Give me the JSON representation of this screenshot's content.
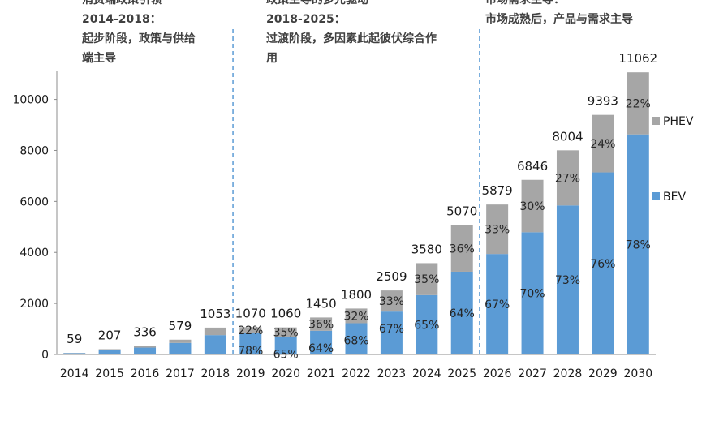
{
  "chart_data": {
    "type": "bar",
    "stacked": true,
    "categories": [
      "2014",
      "2015",
      "2016",
      "2017",
      "2018",
      "2019",
      "2020",
      "2021",
      "2022",
      "2023",
      "2024",
      "2025",
      "2026",
      "2027",
      "2028",
      "2029",
      "2030"
    ],
    "totals": [
      59,
      207,
      336,
      579,
      1053,
      1070,
      1060,
      1450,
      1800,
      2509,
      3580,
      5070,
      5879,
      6846,
      8004,
      9393,
      11062
    ],
    "total_labels": [
      "59",
      "207",
      "336",
      "579",
      "1053",
      "1070",
      "1060",
      "1450",
      "1800",
      "2509",
      "3580",
      "5070",
      "5879",
      "6846",
      "8004",
      "9393",
      "11062"
    ],
    "bev_share": [
      0.87,
      0.88,
      0.8,
      0.78,
      0.72,
      0.78,
      0.65,
      0.64,
      0.68,
      0.67,
      0.65,
      0.64,
      0.67,
      0.7,
      0.73,
      0.76,
      0.78
    ],
    "series": [
      {
        "name": "BEV",
        "color": "#5b9bd5",
        "labels": [
          "",
          "",
          "",
          "",
          "",
          "78%",
          "65%",
          "64%",
          "68%",
          "67%",
          "65%",
          "64%",
          "67%",
          "70%",
          "73%",
          "76%",
          "78%"
        ]
      },
      {
        "name": "PHEV",
        "color": "#a6a6a6",
        "labels": [
          "",
          "",
          "",
          "",
          "",
          "22%",
          "35%",
          "36%",
          "32%",
          "33%",
          "35%",
          "36%",
          "33%",
          "30%",
          "27%",
          "24%",
          "22%"
        ]
      }
    ],
    "y_ticks": [
      "0",
      "2000",
      "4000",
      "6000",
      "8000",
      "10000"
    ],
    "ylim": [
      0,
      11100
    ],
    "grid": false,
    "legend": "right",
    "phase_dividers_after": [
      "2018",
      "2025"
    ],
    "divider_color": "#5b9bd5"
  },
  "annotations": [
    [
      "消费端政策引领",
      "2014-2018：",
      "起步阶段，政策与供给",
      "端主导"
    ],
    [
      "政策主导的多元驱动",
      "2018-2025：",
      "过渡阶段，多因素此起彼伏综合作",
      "用"
    ],
    [
      "市场需求主导：",
      "市场成熟后，产品与需求主导"
    ]
  ]
}
